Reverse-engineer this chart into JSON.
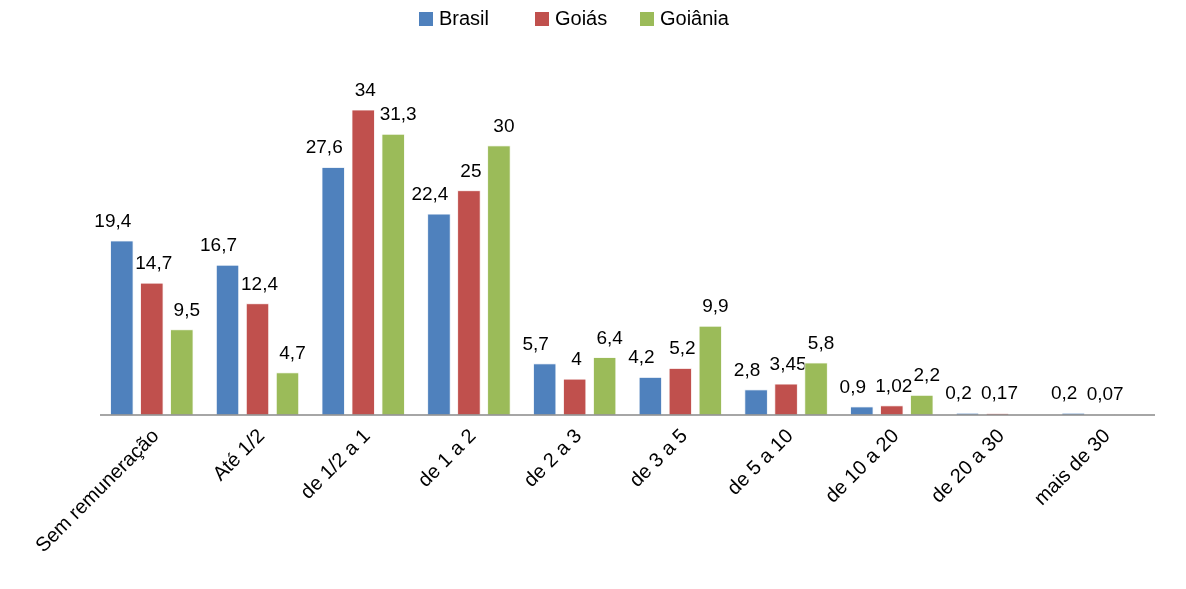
{
  "chart_data": {
    "type": "bar",
    "legend": "top",
    "categories": [
      "Sem remuneração",
      "Até 1/2",
      "de 1/2 a 1",
      "de 1 a 2",
      "de 2 a 3",
      "de 3 a 5",
      "de 5 a 10",
      "de 10 a 20",
      "de 20 a 30",
      "mais de 30"
    ],
    "series": [
      {
        "name": "Brasil",
        "color": "#4f81bd",
        "values": [
          19.4,
          16.7,
          27.6,
          22.4,
          5.7,
          4.2,
          2.8,
          0.9,
          0.2,
          0.2
        ],
        "value_labels": [
          "19,4",
          "16,7",
          "27,6",
          "22,4",
          "5,7",
          "4,2",
          "2,8",
          "0,9",
          "0,2",
          "0,2"
        ]
      },
      {
        "name": "Goiás",
        "color": "#c0504d",
        "values": [
          14.7,
          12.4,
          34,
          25,
          4,
          5.2,
          3.45,
          1.02,
          0.17,
          0.07
        ],
        "value_labels": [
          "14,7",
          "12,4",
          "34",
          "25",
          "4",
          "5,2",
          "3,45",
          "1,02",
          "0,17",
          "0,07"
        ]
      },
      {
        "name": "Goiânia",
        "color": "#9bbb59",
        "values": [
          9.5,
          4.7,
          31.3,
          30,
          6.4,
          9.9,
          5.8,
          2.2,
          null,
          null
        ],
        "value_labels": [
          "9,5",
          "4,7",
          "31,3",
          "30",
          "6,4",
          "9,9",
          "5,8",
          "2,2",
          null,
          null
        ]
      }
    ]
  }
}
